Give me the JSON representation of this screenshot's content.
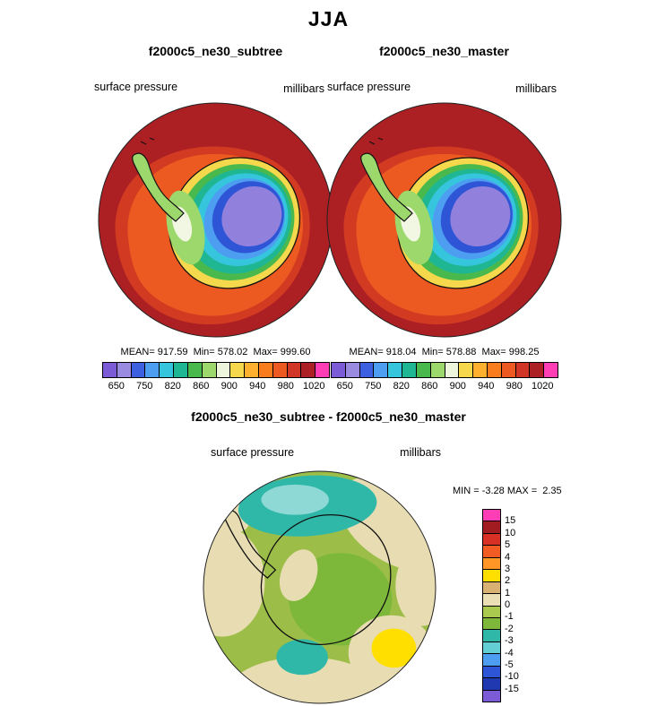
{
  "title": "JJA",
  "panels": {
    "left": {
      "header": "f2000c5_ne30_subtree",
      "field_label": "surface pressure",
      "units_label": "millibars",
      "stats": "MEAN= 917.59  Min= 578.02  Max= 999.60"
    },
    "right": {
      "header": "f2000c5_ne30_master",
      "field_label": "surface pressure",
      "units_label": "millibars",
      "stats": "MEAN= 918.04  Min= 578.88  Max= 998.25"
    },
    "diff": {
      "header": "f2000c5_ne30_subtree - f2000c5_ne30_master",
      "field_label": "surface pressure",
      "units_label": "millibars",
      "stats": "MIN = -3.28 MAX =  2.35"
    }
  },
  "pressure_colorbar": {
    "colors": [
      "#7B5CD6",
      "#9A8BE0",
      "#3C60E0",
      "#4D9EF0",
      "#35C6DE",
      "#1FB793",
      "#49B84D",
      "#9CD86B",
      "#EDF5DC",
      "#F5D84B",
      "#FFB02E",
      "#F97C1D",
      "#EC5A21",
      "#D03526",
      "#AC1F24",
      "#FF3EB5"
    ],
    "tick_labels": [
      "650",
      "750",
      "820",
      "860",
      "900",
      "940",
      "980",
      "1020"
    ]
  },
  "diff_colorbar": {
    "colors": [
      "#FF3EB5",
      "#A01C20",
      "#D93025",
      "#F25C24",
      "#FF9626",
      "#FFDF00",
      "#D9B273",
      "#EBDFB6",
      "#A9C94F",
      "#7DB83A",
      "#2FB8A8",
      "#63CFD4",
      "#4D9EF0",
      "#2E55D6",
      "#2139B0",
      "#7B5CD6"
    ],
    "tick_labels": [
      "15",
      "10",
      "5",
      "4",
      "3",
      "2",
      "1",
      "0",
      "-1",
      "-2",
      "-3",
      "-4",
      "-5",
      "-10",
      "-15"
    ]
  },
  "chart_data": [
    {
      "type": "heatmap",
      "title": "JJA surface pressure - f2000c5_ne30_subtree",
      "projection": "south polar stereographic (Antarctica)",
      "units": "millibars",
      "levels": [
        650,
        700,
        750,
        800,
        820,
        840,
        860,
        880,
        900,
        920,
        940,
        960,
        980,
        1000,
        1020
      ],
      "legend_position": "bottom",
      "stats": {
        "mean": 917.59,
        "min": 578.02,
        "max": 999.6
      }
    },
    {
      "type": "heatmap",
      "title": "JJA surface pressure - f2000c5_ne30_master",
      "projection": "south polar stereographic (Antarctica)",
      "units": "millibars",
      "levels": [
        650,
        700,
        750,
        800,
        820,
        840,
        860,
        880,
        900,
        920,
        940,
        960,
        980,
        1000,
        1020
      ],
      "legend_position": "bottom",
      "stats": {
        "mean": 918.04,
        "min": 578.88,
        "max": 998.25
      }
    },
    {
      "type": "heatmap",
      "title": "f2000c5_ne30_subtree - f2000c5_ne30_master (difference)",
      "projection": "south polar stereographic (Antarctica)",
      "units": "millibars",
      "levels": [
        15,
        10,
        5,
        4,
        3,
        2,
        1,
        0,
        -1,
        -2,
        -3,
        -4,
        -5,
        -10,
        -15
      ],
      "legend_position": "right",
      "stats": {
        "min": -3.28,
        "max": 2.35
      }
    }
  ]
}
